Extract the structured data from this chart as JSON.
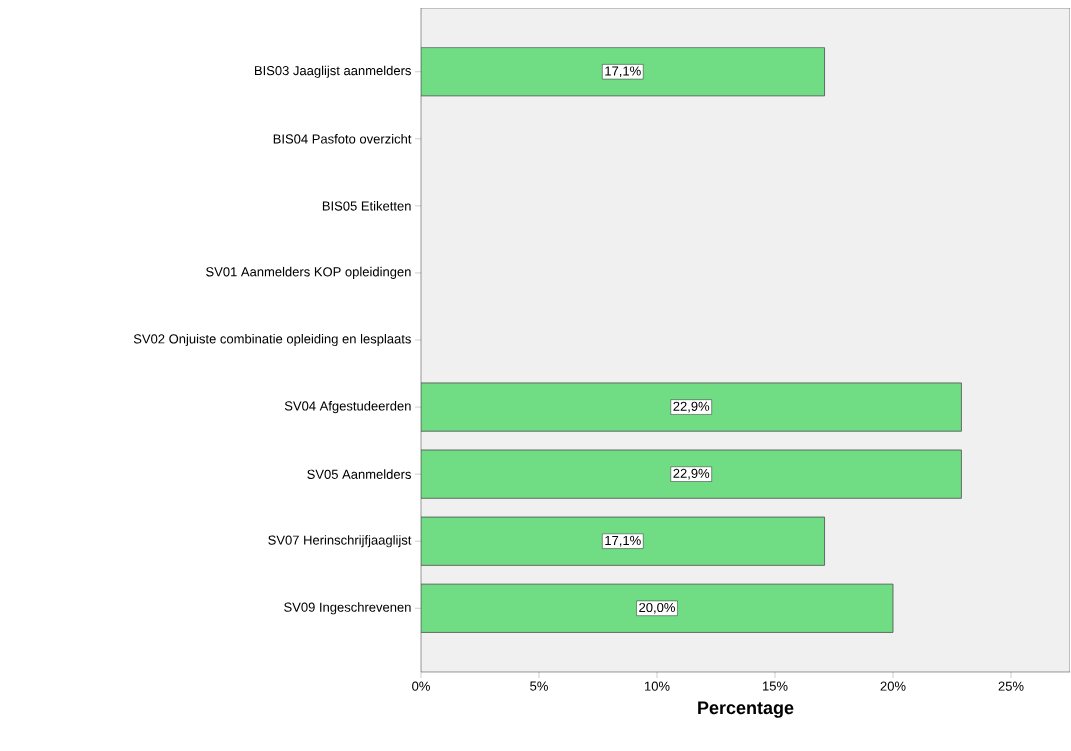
{
  "chart_data": {
    "type": "bar",
    "orientation": "horizontal",
    "xlabel": "Percentage",
    "categories": [
      "BIS03 Jaaglijst aanmelders",
      "BIS04 Pasfoto overzicht",
      "BIS05 Etiketten",
      "SV01 Aanmelders KOP opleidingen",
      "SV02 Onjuiste combinatie opleiding en lesplaats",
      "SV04 Afgestudeerden",
      "SV05 Aanmelders",
      "SV07 Herinschrijfjaaglijst",
      "SV09 Ingeschrevenen"
    ],
    "values": [
      17.1,
      null,
      null,
      null,
      null,
      22.9,
      22.9,
      17.1,
      20.0
    ],
    "value_labels": [
      "17,1%",
      null,
      null,
      null,
      null,
      "22,9%",
      "22,9%",
      "17,1%",
      "20,0%"
    ],
    "color": "#70dc84",
    "xlim": [
      0,
      27.5
    ],
    "xticks": [
      {
        "value": 0,
        "label": "0%"
      },
      {
        "value": 5,
        "label": "5%"
      },
      {
        "value": 10,
        "label": "10%"
      },
      {
        "value": 15,
        "label": "15%"
      },
      {
        "value": 20,
        "label": "20%"
      },
      {
        "value": 25,
        "label": "25%"
      }
    ],
    "grid": false
  }
}
